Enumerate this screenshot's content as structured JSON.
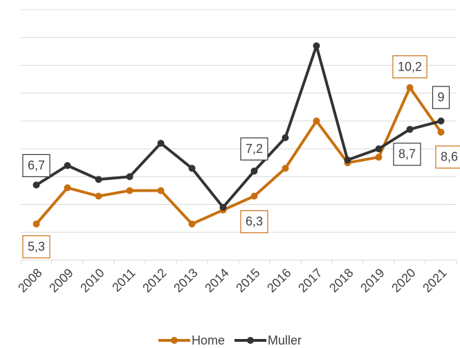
{
  "chart_data": {
    "type": "line",
    "categories": [
      "2008",
      "2009",
      "2010",
      "2011",
      "2012",
      "2013",
      "2014",
      "2015",
      "2016",
      "2017",
      "2018",
      "2019",
      "2020",
      "2021"
    ],
    "series": [
      {
        "name": "Home",
        "color": "#c8700f",
        "values": [
          5.3,
          6.6,
          6.3,
          6.5,
          6.5,
          5.3,
          5.8,
          6.3,
          7.3,
          9.0,
          7.5,
          7.7,
          10.2,
          8.6
        ],
        "value_labels": [
          "5,3",
          null,
          null,
          null,
          null,
          null,
          null,
          "6,3",
          null,
          null,
          null,
          null,
          "10,2",
          "8,6"
        ]
      },
      {
        "name": "Muller",
        "color": "#333333",
        "values": [
          6.7,
          7.4,
          6.9,
          7.0,
          8.2,
          7.3,
          5.9,
          7.2,
          8.4,
          11.7,
          7.6,
          8.0,
          8.7,
          9
        ],
        "value_labels": [
          "6,7",
          null,
          null,
          null,
          null,
          null,
          null,
          "7,2",
          null,
          null,
          null,
          null,
          "8,7",
          "9"
        ]
      }
    ],
    "ylim": [
      4,
      13
    ],
    "yticks": [
      4,
      5,
      6,
      7,
      8,
      9,
      10,
      11,
      12,
      13
    ],
    "grid": true,
    "legend": "bottom"
  }
}
